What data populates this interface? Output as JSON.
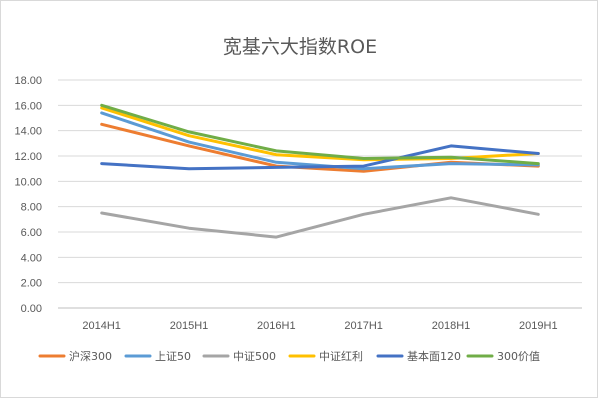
{
  "chart_data": {
    "type": "line",
    "title": "宽基六大指数ROE",
    "categories": [
      "2014H1",
      "2015H1",
      "2016H1",
      "2017H1",
      "2018H1",
      "2019H1"
    ],
    "y_tick_labels": [
      "0.00",
      "2.00",
      "4.00",
      "6.00",
      "8.00",
      "10.00",
      "12.00",
      "14.00",
      "16.00",
      "18.00"
    ],
    "ylim": [
      0,
      18
    ],
    "grid": true,
    "legend_position": "bottom",
    "series": [
      {
        "name": "沪深300",
        "color": "#ED7D31",
        "values": [
          14.5,
          12.8,
          11.2,
          10.8,
          11.5,
          11.2
        ]
      },
      {
        "name": "上证50",
        "color": "#5B9BD5",
        "values": [
          15.4,
          13.1,
          11.5,
          11.0,
          11.4,
          11.3
        ]
      },
      {
        "name": "中证500",
        "color": "#A5A5A5",
        "values": [
          7.5,
          6.3,
          5.6,
          7.4,
          8.7,
          7.4
        ]
      },
      {
        "name": "中证红利",
        "color": "#FFC000",
        "values": [
          15.8,
          13.6,
          12.1,
          11.7,
          11.8,
          12.2
        ]
      },
      {
        "name": "基本面120",
        "color": "#4472C4",
        "values": [
          11.4,
          11.0,
          11.1,
          11.2,
          12.8,
          12.2
        ]
      },
      {
        "name": "300价值",
        "color": "#70AD47",
        "values": [
          16.0,
          13.9,
          12.4,
          11.8,
          11.9,
          11.4
        ]
      }
    ]
  }
}
